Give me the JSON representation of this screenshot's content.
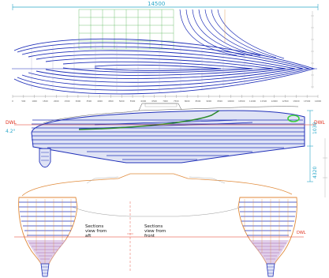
{
  "plan_view": {
    "overall_length": "14500",
    "scale_ticks": [
      "0",
      "500",
      "1000",
      "1500",
      "2000",
      "2500",
      "3000",
      "3500",
      "4000",
      "4500",
      "5000",
      "5500",
      "6000",
      "6500",
      "7000",
      "7500",
      "8000",
      "8500",
      "9000",
      "9500",
      "10000",
      "10500",
      "11000",
      "11500",
      "12000",
      "12500",
      "13000",
      "13500",
      "14000"
    ]
  },
  "profile_view": {
    "left_dwl_label": "DWL",
    "left_angle_label": "4.2°",
    "right_dwl_label": "DWL",
    "height_dim_upper": "1030",
    "height_dim_lower": "4320"
  },
  "body_plan": {
    "label_aft": "Sections\nview from\naft",
    "label_front": "Sections\nview from\nfront",
    "dwl_label": "DWL"
  },
  "colors": {
    "hull_lines": "#1f2fb8",
    "waterlines": "#1f2fb8",
    "buttocks": "#57b657",
    "sections": "#e08a3a",
    "dimensions": "#2aa7c9",
    "dwl": "#e0301e",
    "deck": "#2e8b2e"
  }
}
